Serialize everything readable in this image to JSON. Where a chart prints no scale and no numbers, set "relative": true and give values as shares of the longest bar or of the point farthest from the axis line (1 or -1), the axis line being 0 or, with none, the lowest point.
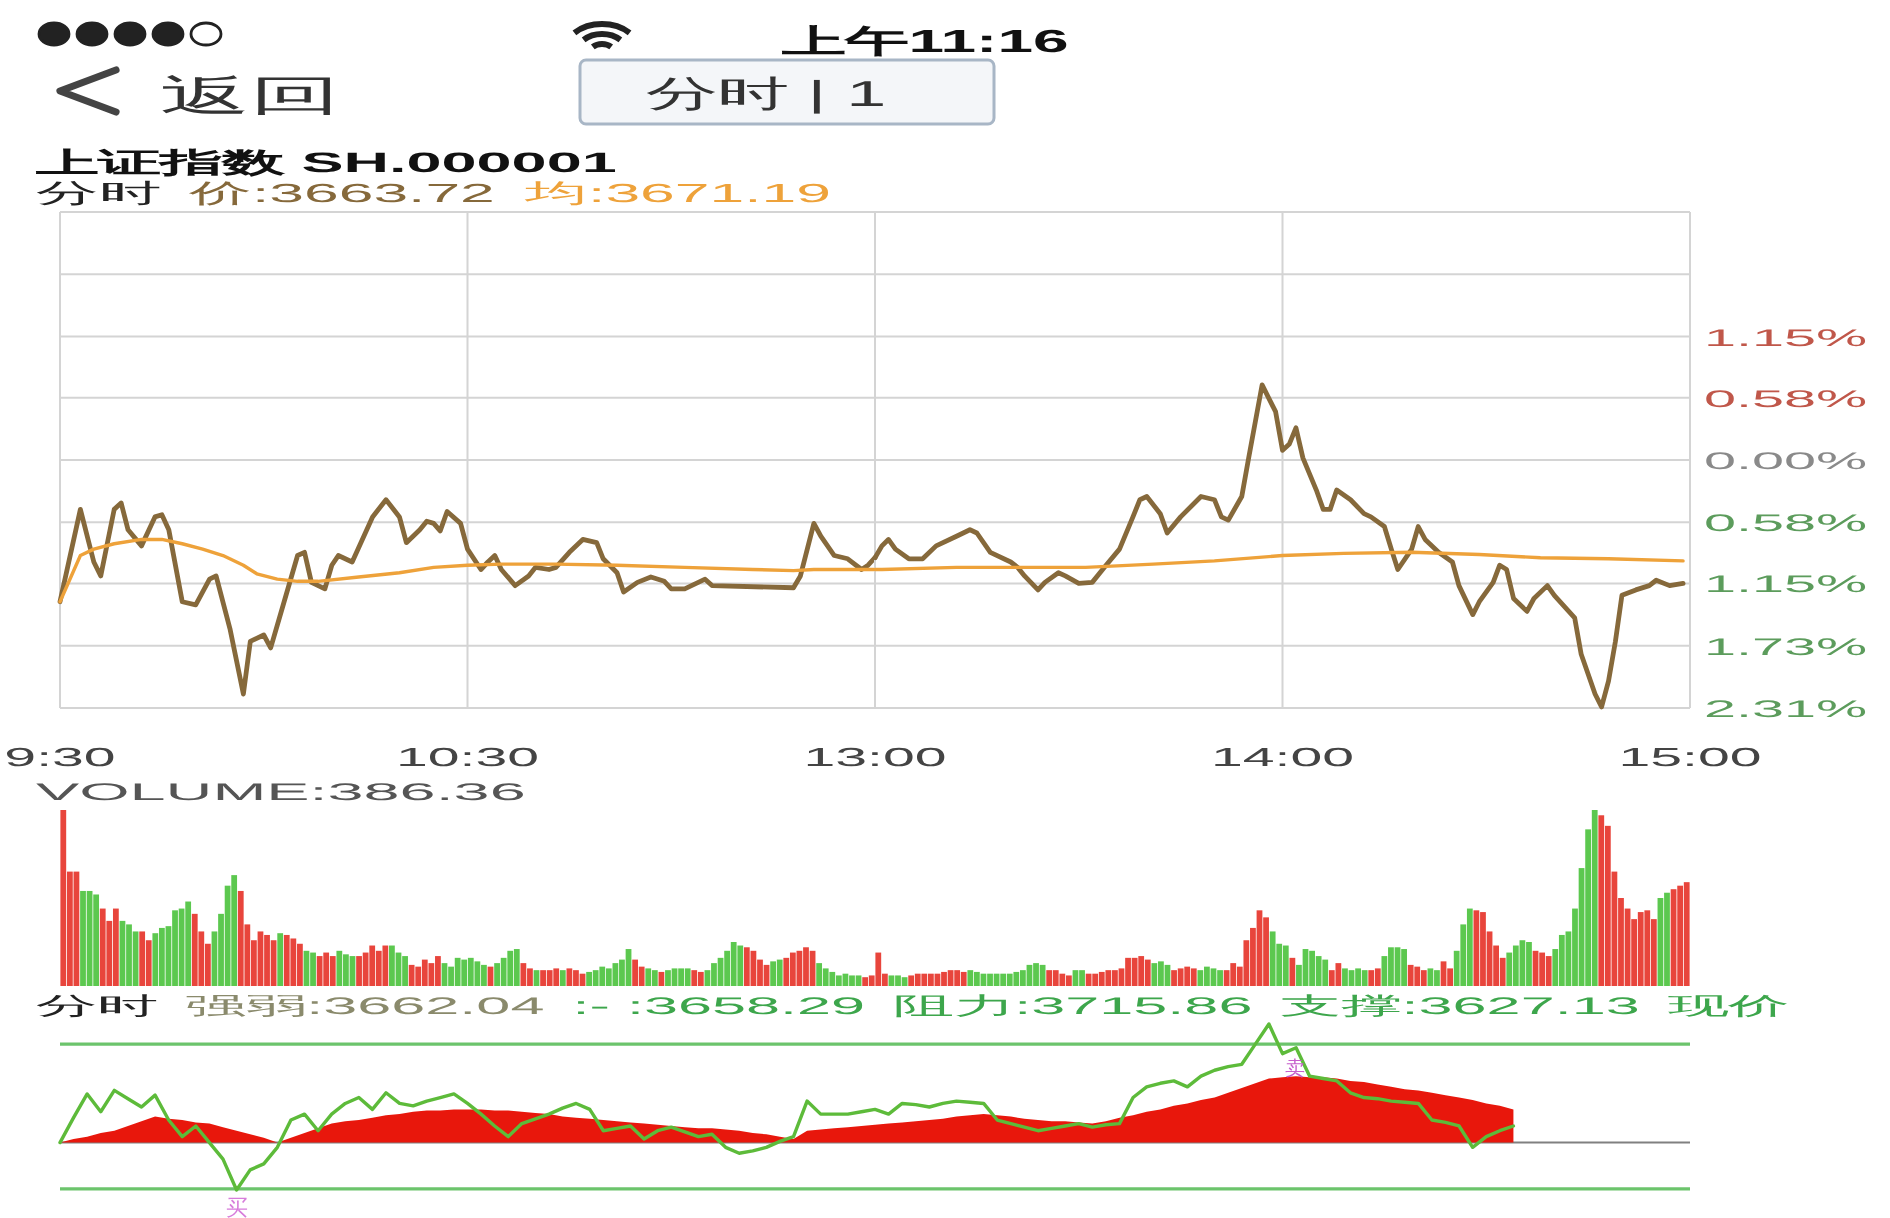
{
  "chart_data": [
    {
      "type": "line",
      "title": "上证指数 SH.000001",
      "subtitle": "分时",
      "annotations": [
        "上午11:16",
        "返回",
        "分时 | 1"
      ],
      "xlim": [
        9.5,
        11.5
      ],
      "xticks": [
        {
          "value": 9.5,
          "label": "9:30"
        },
        {
          "value": 10.5,
          "label": "10:30"
        }
      ],
      "ylim": [
        -2.31,
        2.31
      ],
      "yticks": [
        {
          "value": 2.31,
          "label": null
        },
        {
          "value": 1.73,
          "label": null
        },
        {
          "value": 1.15,
          "label": null
        },
        {
          "value": 0.58,
          "label": null
        },
        {
          "value": 0,
          "label": null
        },
        {
          "value": -0.58,
          "label": null
        },
        {
          "value": -1.15,
          "label": null
        },
        {
          "value": -1.73,
          "label": null
        },
        {
          "value": -2.31,
          "label": null
        }
      ],
      "tick_labels": "x",
      "grid": true,
      "legend": "top",
      "series": [
        {
          "name": "价:3663.72",
          "color": "#86693b",
          "x": [
            9.5,
            9.55,
            9.583,
            9.6,
            9.633,
            9.65,
            9.667,
            9.7,
            9.733,
            9.75,
            9.767,
            9.8,
            9.833,
            9.867,
            9.883,
            9.917,
            9.95,
            9.967,
            10,
            10.017,
            10.05,
            10.083,
            10.1,
            10.117,
            10.15,
            10.167,
            10.183,
            10.217,
            10.267,
            10.3,
            10.333,
            10.35,
            10.383,
            10.4,
            10.417,
            10.433,
            10.45,
            10.483,
            10.5,
            10.533,
            10.55,
            10.567,
            10.583,
            10.617,
            10.65,
            10.667,
            10.7,
            10.717,
            10.75,
            10.783,
            10.817,
            10.833,
            10.867,
            10.883,
            10.917,
            10.95,
            10.983,
            11,
            11.033,
            11.083,
            11.1,
            11.3,
            11.317,
            11.35,
            11.367,
            11.4,
            11.433,
            11.467,
            11.483,
            11.5
          ],
          "values": [
            -1.32,
            -0.46,
            -0.95,
            -1.08,
            -0.46,
            -0.4,
            -0.65,
            -0.8,
            -0.53,
            -0.51,
            -0.65,
            -1.32,
            -1.35,
            -1.11,
            -1.08,
            -1.57,
            -2.18,
            -1.69,
            -1.63,
            -1.75,
            -1.32,
            -0.89,
            -0.86,
            -1.14,
            -1.2,
            -0.98,
            -0.89,
            -0.95,
            -0.53,
            -0.37,
            -0.53,
            -0.77,
            -0.65,
            -0.57,
            -0.59,
            -0.66,
            -0.48,
            -0.59,
            -0.83,
            -1.02,
            -0.95,
            -0.89,
            -1.02,
            -1.17,
            -1.08,
            -1.0,
            -1.02,
            -1.0,
            -0.86,
            -0.74,
            -0.77,
            -0.92,
            -1.05,
            -1.23,
            -1.14,
            -1.09,
            -1.13,
            -1.2,
            -1.2,
            -1.11,
            -1.17,
            -1.19,
            -1.08,
            -0.59,
            -0.71,
            -0.89,
            -0.92,
            -1.02,
            -0.98,
            -0.91
          ]
        },
        {
          "name": "均:3671.19",
          "color": "#eea23a",
          "x": [
            9.5,
            9.55,
            9.583,
            9.633,
            9.7,
            9.75,
            9.8,
            9.85,
            9.9,
            9.95,
            9.983,
            10.033,
            10.083,
            10.133,
            10.233,
            10.333,
            10.417,
            10.5,
            10.583,
            10.717,
            10.867,
            11.033,
            11.2,
            11.3,
            11.35,
            11.5
          ],
          "values": [
            -1.32,
            -0.89,
            -0.83,
            -0.78,
            -0.74,
            -0.74,
            -0.78,
            -0.83,
            -0.89,
            -0.98,
            -1.06,
            -1.11,
            -1.13,
            -1.13,
            -1.09,
            -1.05,
            -1.0,
            -0.98,
            -0.97,
            -0.97,
            -0.98,
            -1.0,
            -1.02,
            -1.03,
            -1.02,
            -1.02
          ]
        }
      ]
    },
    {
      "type": "line",
      "xlim": [
        13,
        15
      ],
      "xticks": [
        {
          "value": 13,
          "label": "13:00"
        },
        {
          "value": 14,
          "label": "14:00"
        },
        {
          "value": 15,
          "label": "15:00"
        }
      ],
      "ylim": [
        -2.31,
        2.31
      ],
      "yticks": [
        {
          "value": 2.31,
          "label": null
        },
        {
          "value": 1.73,
          "label": null
        },
        {
          "value": 1.15,
          "label": "1.15%"
        },
        {
          "value": 0.58,
          "label": "0.58%"
        },
        {
          "value": 0,
          "label": "0.00%"
        },
        {
          "value": -0.58,
          "label": "0.58%"
        },
        {
          "value": -1.15,
          "label": "1.15%"
        },
        {
          "value": -1.73,
          "label": "1.73%"
        },
        {
          "value": -2.31,
          "label": "2.31%"
        }
      ],
      "grid": true,
      "series": [
        {
          "color": "#86693b",
          "x": [
            13,
            13.017,
            13.033,
            13.05,
            13.083,
            13.117,
            13.15,
            13.2,
            13.233,
            13.25,
            13.283,
            13.333,
            13.35,
            13.367,
            13.4,
            13.417,
            13.45,
            13.467,
            13.5,
            13.533,
            13.567,
            13.6,
            13.633,
            13.65,
            13.667,
            13.7,
            13.717,
            13.75,
            13.8,
            13.833,
            13.85,
            13.867,
            13.9,
            13.917,
            13.95,
            13.983,
            14,
            14.017,
            14.033,
            14.05,
            14.083,
            14.1,
            14.117,
            14.133,
            14.167,
            14.2,
            14.217,
            14.25,
            14.267,
            14.283,
            14.317,
            14.333,
            14.35,
            14.383,
            14.417,
            14.433,
            14.467,
            14.483,
            14.517,
            14.533,
            14.55,
            14.567,
            14.6,
            14.617,
            14.65,
            14.667,
            14.717,
            14.733,
            14.767,
            14.783,
            14.8,
            14.817,
            14.833,
            14.867,
            14.9,
            14.917,
            14.95,
            14.983
          ],
          "values": [
            -0.91,
            -0.8,
            -0.74,
            -0.83,
            -0.92,
            -0.92,
            -0.8,
            -0.71,
            -0.65,
            -0.68,
            -0.86,
            -0.95,
            -1.0,
            -1.08,
            -1.21,
            -1.14,
            -1.05,
            -1.08,
            -1.15,
            -1.14,
            -0.98,
            -0.83,
            -0.53,
            -0.37,
            -0.34,
            -0.5,
            -0.68,
            -0.53,
            -0.34,
            -0.37,
            -0.53,
            -0.56,
            -0.34,
            0.02,
            0.7,
            0.45,
            0.09,
            0.15,
            0.3,
            0.02,
            -0.28,
            -0.46,
            -0.46,
            -0.28,
            -0.37,
            -0.5,
            -0.53,
            -0.62,
            -0.83,
            -1.02,
            -0.83,
            -0.62,
            -0.74,
            -0.86,
            -0.95,
            -1.17,
            -1.44,
            -1.32,
            -1.14,
            -0.98,
            -1.02,
            -1.29,
            -1.41,
            -1.29,
            -1.17,
            -1.26,
            -1.47,
            -1.81,
            -2.18,
            -2.3,
            -2.06,
            -1.69,
            -1.26,
            -1.21,
            -1.17,
            -1.12,
            -1.17,
            -1.15
          ]
        },
        {
          "color": "#eea23a",
          "x": [
            13,
            13.017,
            13.2,
            13.35,
            13.517,
            13.683,
            13.833,
            14,
            14.15,
            14.317,
            14.483,
            14.633,
            14.8,
            14.983
          ],
          "values": [
            -1.02,
            -1.02,
            -1.0,
            -1.0,
            -1.0,
            -0.97,
            -0.94,
            -0.89,
            -0.87,
            -0.86,
            -0.88,
            -0.91,
            -0.92,
            -0.94
          ]
        }
      ]
    },
    {
      "type": "bar",
      "title": "VOLUME:386.36",
      "relative": true,
      "categories": [
        null,
        null,
        null,
        null,
        null,
        null,
        null,
        null,
        null,
        null,
        null,
        null,
        null,
        null,
        null,
        null,
        null,
        null,
        null,
        null,
        null,
        null,
        null,
        null,
        null,
        null,
        null,
        null,
        null,
        null,
        null,
        null,
        null,
        null,
        null,
        null,
        null,
        null,
        null,
        null,
        null,
        null,
        null,
        null,
        null,
        null,
        null,
        null,
        null,
        null,
        null,
        null,
        null,
        null,
        null,
        null,
        null,
        null,
        null,
        null,
        null,
        null,
        null,
        null,
        null,
        null,
        null,
        null,
        null,
        null,
        null,
        null,
        null,
        null,
        null,
        null,
        null,
        null,
        null,
        null,
        null,
        null,
        null,
        null,
        null,
        null,
        null,
        null,
        null,
        null,
        null,
        null,
        null,
        null,
        null,
        null,
        null,
        null,
        null,
        null,
        null,
        null,
        null,
        null,
        null,
        null,
        null,
        null,
        null,
        null,
        null,
        null,
        null,
        null,
        null,
        null,
        null,
        null,
        null,
        null,
        null,
        null,
        null,
        null,
        null,
        null,
        null,
        null,
        null,
        null,
        null,
        null,
        null,
        null,
        null,
        null,
        null,
        null,
        null,
        null,
        null,
        null,
        null,
        null,
        null,
        null,
        null,
        null,
        null,
        null,
        null,
        null,
        null,
        null,
        null,
        null,
        null,
        null,
        null,
        null,
        null,
        null,
        null,
        null,
        null,
        null,
        null,
        null,
        null,
        null,
        null,
        null,
        null,
        null,
        null,
        null,
        null,
        null,
        null,
        null,
        null,
        null,
        null,
        null,
        null,
        null,
        null,
        null,
        null,
        null,
        null,
        null,
        null,
        null,
        null,
        null,
        null,
        null,
        null,
        null,
        null,
        null,
        null,
        null,
        null,
        null,
        null,
        null,
        null,
        null,
        null,
        null,
        null,
        null,
        null,
        null,
        null,
        null,
        null,
        null,
        null,
        null,
        null,
        null,
        null,
        null,
        null,
        null,
        null,
        null,
        null,
        null,
        null,
        null,
        null,
        null,
        null,
        null,
        null,
        null,
        null,
        null,
        null,
        null,
        null,
        null,
        null,
        null
      ],
      "values": [
        1.0,
        0.65,
        0.65,
        0.54,
        0.54,
        0.52,
        0.44,
        0.37,
        0.44,
        0.37,
        0.35,
        0.31,
        0.31,
        0.26,
        0.3,
        0.33,
        0.34,
        0.43,
        0.44,
        0.48,
        0.41,
        0.31,
        0.24,
        0.31,
        0.41,
        0.57,
        0.63,
        0.54,
        0.35,
        0.26,
        0.31,
        0.29,
        0.26,
        0.3,
        0.29,
        0.27,
        0.24,
        0.2,
        0.19,
        0.17,
        0.19,
        0.17,
        0.2,
        0.18,
        0.17,
        0.17,
        0.19,
        0.23,
        0.2,
        0.23,
        0.23,
        0.19,
        0.17,
        0.12,
        0.11,
        0.15,
        0.13,
        0.17,
        0.13,
        0.11,
        0.16,
        0.15,
        0.16,
        0.14,
        0.12,
        0.11,
        0.13,
        0.16,
        0.2,
        0.21,
        0.13,
        0.1,
        0.09,
        0.09,
        0.09,
        0.1,
        0.09,
        0.1,
        0.09,
        0.07,
        0.08,
        0.09,
        0.11,
        0.1,
        0.13,
        0.15,
        0.21,
        0.15,
        0.11,
        0.1,
        0.09,
        0.08,
        0.09,
        0.1,
        0.1,
        0.1,
        0.09,
        0.08,
        0.09,
        0.13,
        0.16,
        0.2,
        0.25,
        0.23,
        0.22,
        0.2,
        0.15,
        0.12,
        0.14,
        0.15,
        0.16,
        0.19,
        0.2,
        0.22,
        0.2,
        0.13,
        0.1,
        0.08,
        0.06,
        0.07,
        0.06,
        0.06,
        0.05,
        0.06,
        0.19,
        0.07,
        0.06,
        0.06,
        0.05,
        0.06,
        0.07,
        0.07,
        0.07,
        0.07,
        0.08,
        0.09,
        0.09,
        0.08,
        0.09,
        0.08,
        0.07,
        0.07,
        0.07,
        0.07,
        0.07,
        0.08,
        0.09,
        0.12,
        0.13,
        0.12,
        0.09,
        0.09,
        0.07,
        0.06,
        0.09,
        0.09,
        0.07,
        0.07,
        0.08,
        0.09,
        0.09,
        0.1,
        0.16,
        0.16,
        0.17,
        0.15,
        0.13,
        0.14,
        0.12,
        0.09,
        0.1,
        0.11,
        0.1,
        0.09,
        0.11,
        0.1,
        0.09,
        0.09,
        0.13,
        0.11,
        0.26,
        0.33,
        0.43,
        0.39,
        0.31,
        0.24,
        0.23,
        0.16,
        0.12,
        0.21,
        0.2,
        0.17,
        0.15,
        0.09,
        0.13,
        0.1,
        0.09,
        0.1,
        0.09,
        0.09,
        0.1,
        0.17,
        0.22,
        0.22,
        0.21,
        0.12,
        0.11,
        0.09,
        0.1,
        0.09,
        0.14,
        0.1,
        0.2,
        0.35,
        0.44,
        0.43,
        0.42,
        0.31,
        0.23,
        0.16,
        0.19,
        0.23,
        0.26,
        0.25,
        0.2,
        0.19,
        0.17,
        0.21,
        0.29,
        0.31,
        0.44,
        0.67,
        0.89,
        1.0,
        0.97,
        0.91,
        0.65,
        0.5,
        0.44,
        0.38,
        0.42,
        0.43,
        0.38,
        0.5,
        0.53,
        0.55,
        0.57,
        0.59
      ],
      "colors": [
        "#e8453c",
        "#e8453c",
        "#e8453c",
        "#5cc84f",
        "#5cc84f",
        "#5cc84f",
        "#e8453c",
        "#e8453c",
        "#e8453c",
        "#5cc84f",
        "#5cc84f",
        "#5cc84f",
        "#e8453c",
        "#e8453c",
        "#5cc84f",
        "#5cc84f",
        "#5cc84f",
        "#5cc84f",
        "#5cc84f",
        "#5cc84f",
        "#e8453c",
        "#e8453c",
        "#e8453c",
        "#5cc84f",
        "#5cc84f",
        "#5cc84f",
        "#5cc84f",
        "#e8453c",
        "#e8453c",
        "#e8453c",
        "#e8453c",
        "#e8453c",
        "#e8453c",
        "#5cc84f",
        "#e8453c",
        "#e8453c",
        "#e8453c",
        "#5cc84f",
        "#5cc84f",
        "#e8453c",
        "#e8453c",
        "#e8453c",
        "#5cc84f",
        "#5cc84f",
        "#5cc84f",
        "#e8453c",
        "#e8453c",
        "#e8453c",
        "#e8453c",
        "#e8453c",
        "#5cc84f",
        "#5cc84f",
        "#5cc84f",
        "#e8453c",
        "#e8453c",
        "#e8453c",
        "#e8453c",
        "#e8453c",
        "#5cc84f",
        "#5cc84f",
        "#5cc84f",
        "#5cc84f",
        "#5cc84f",
        "#5cc84f",
        "#5cc84f",
        "#e8453c",
        "#5cc84f",
        "#5cc84f",
        "#5cc84f",
        "#5cc84f",
        "#e8453c",
        "#e8453c",
        "#5cc84f",
        "#e8453c",
        "#e8453c",
        "#e8453c",
        "#5cc84f",
        "#e8453c",
        "#e8453c",
        "#e8453c",
        "#5cc84f",
        "#5cc84f",
        "#5cc84f",
        "#5cc84f",
        "#5cc84f",
        "#5cc84f",
        "#5cc84f",
        "#e8453c",
        "#e8453c",
        "#5cc84f",
        "#5cc84f",
        "#e8453c",
        "#5cc84f",
        "#5cc84f",
        "#5cc84f",
        "#5cc84f",
        "#e8453c",
        "#e8453c",
        "#5cc84f",
        "#5cc84f",
        "#5cc84f",
        "#5cc84f",
        "#5cc84f",
        "#5cc84f",
        "#e8453c",
        "#e8453c",
        "#e8453c",
        "#e8453c",
        "#5cc84f",
        "#5cc84f",
        "#e8453c",
        "#e8453c",
        "#e8453c",
        "#e8453c",
        "#e8453c",
        "#5cc84f",
        "#5cc84f",
        "#5cc84f",
        "#5cc84f",
        "#5cc84f",
        "#5cc84f",
        "#5cc84f",
        "#e8453c",
        "#e8453c",
        "#e8453c",
        "#e8453c",
        "#5cc84f",
        "#5cc84f",
        "#5cc84f",
        "#e8453c",
        "#e8453c",
        "#e8453c",
        "#e8453c",
        "#e8453c",
        "#e8453c",
        "#e8453c",
        "#e8453c",
        "#e8453c",
        "#5cc84f",
        "#5cc84f",
        "#5cc84f",
        "#5cc84f",
        "#5cc84f",
        "#5cc84f",
        "#5cc84f",
        "#5cc84f",
        "#5cc84f",
        "#5cc84f",
        "#5cc84f",
        "#5cc84f",
        "#e8453c",
        "#e8453c",
        "#e8453c",
        "#e8453c",
        "#5cc84f",
        "#5cc84f",
        "#e8453c",
        "#e8453c",
        "#e8453c",
        "#e8453c",
        "#e8453c",
        "#e8453c",
        "#e8453c",
        "#e8453c",
        "#e8453c",
        "#e8453c",
        "#5cc84f",
        "#5cc84f",
        "#5cc84f",
        "#e8453c",
        "#e8453c",
        "#e8453c",
        "#e8453c",
        "#5cc84f",
        "#5cc84f",
        "#5cc84f",
        "#5cc84f",
        "#e8453c",
        "#e8453c",
        "#e8453c",
        "#e8453c",
        "#e8453c",
        "#e8453c",
        "#e8453c",
        "#5cc84f",
        "#5cc84f",
        "#5cc84f",
        "#e8453c",
        "#5cc84f",
        "#5cc84f",
        "#5cc84f",
        "#5cc84f",
        "#5cc84f",
        "#e8453c",
        "#e8453c",
        "#5cc84f",
        "#5cc84f",
        "#5cc84f",
        "#5cc84f",
        "#e8453c",
        "#e8453c",
        "#5cc84f",
        "#5cc84f",
        "#5cc84f",
        "#5cc84f",
        "#e8453c",
        "#e8453c",
        "#e8453c",
        "#5cc84f",
        "#5cc84f",
        "#e8453c",
        "#e8453c",
        "#5cc84f",
        "#5cc84f",
        "#5cc84f",
        "#e8453c",
        "#e8453c",
        "#e8453c",
        "#e8453c",
        "#e8453c",
        "#5cc84f",
        "#5cc84f",
        "#5cc84f",
        "#5cc84f",
        "#e8453c",
        "#e8453c",
        "#e8453c",
        "#5cc84f",
        "#5cc84f",
        "#5cc84f",
        "#5cc84f",
        "#5cc84f",
        "#5cc84f",
        "#5cc84f",
        "#e8453c",
        "#e8453c",
        "#e8453c",
        "#e8453c",
        "#e8453c",
        "#e8453c",
        "#e8453c",
        "#e8453c",
        "#e8453c",
        "#5cc84f",
        "#5cc84f",
        "#e8453c",
        "#e8453c",
        "#e8453c"
      ]
    },
    {
      "type": "line",
      "title": "分时",
      "annotations": [
        "强弱:3662.04",
        ":- :3658.29",
        "阻力:3715.86",
        "支撑:3627.13",
        "现价",
        "卖",
        "买"
      ],
      "relative": true,
      "categories": [
        null,
        null,
        null,
        null,
        null,
        null,
        null,
        null,
        null,
        null,
        null,
        null,
        null,
        null,
        null,
        null,
        null,
        null,
        null,
        null,
        null,
        null,
        null,
        null,
        null,
        null,
        null,
        null,
        null,
        null,
        null,
        null,
        null,
        null,
        null,
        null,
        null,
        null,
        null,
        null,
        null,
        null,
        null,
        null,
        null,
        null,
        null,
        null,
        null,
        null,
        null,
        null,
        null,
        null,
        null,
        null,
        null,
        null,
        null,
        null,
        null,
        null,
        null,
        null,
        null,
        null,
        null,
        null,
        null,
        null,
        null,
        null,
        null,
        null,
        null,
        null,
        null,
        null,
        null,
        null,
        null,
        null,
        null,
        null,
        null,
        null,
        null,
        null,
        null,
        null,
        null,
        null,
        null,
        null,
        null,
        null,
        null,
        null,
        null,
        null,
        null,
        null,
        null,
        null,
        null,
        null,
        null,
        null,
        null,
        null,
        null,
        null,
        null,
        null,
        null,
        null,
        null,
        null,
        null,
        null,
        null
      ],
      "ref_lines": [
        {
          "axis": "y",
          "value": 0.83,
          "color": "#6cc46c"
        },
        {
          "axis": "y",
          "value": -0.39,
          "color": "#6cc46c"
        }
      ],
      "series": [
        {
          "type": "area",
          "color": "#e8170c",
          "values": [
            0,
            0.03,
            0.05,
            0.08,
            0.1,
            0.14,
            0.18,
            0.22,
            0.2,
            0.19,
            0.17,
            0.16,
            0.13,
            0.1,
            0.07,
            0.04,
            0,
            0.04,
            0.08,
            0.12,
            0.16,
            0.18,
            0.19,
            0.21,
            0.23,
            0.24,
            0.26,
            0.27,
            0.27,
            0.28,
            0.28,
            0.28,
            0.27,
            0.27,
            0.26,
            0.25,
            0.24,
            0.22,
            0.21,
            0.2,
            0.19,
            0.18,
            0.17,
            0.16,
            0.15,
            0.14,
            0.13,
            0.12,
            0.12,
            0.11,
            0.1,
            0.08,
            0.07,
            0.05,
            0.03,
            0.1,
            0.11,
            0.12,
            0.13,
            0.14,
            0.15,
            0.16,
            0.17,
            0.18,
            0.19,
            0.2,
            0.22,
            0.23,
            0.24,
            0.23,
            0.22,
            0.2,
            0.19,
            0.18,
            0.18,
            0.17,
            0.16,
            0.18,
            0.21,
            0.23,
            0.26,
            0.28,
            0.31,
            0.33,
            0.36,
            0.38,
            0.42,
            0.46,
            0.5,
            0.54,
            0.55,
            0.56,
            0.55,
            0.55,
            0.54,
            0.52,
            0.51,
            0.49,
            0.47,
            0.45,
            0.44,
            0.42,
            0.4,
            0.38,
            0.36,
            0.33,
            0.31,
            0.28,
            null,
            null,
            null,
            null,
            null,
            null,
            null,
            null,
            null,
            null,
            null,
            null,
            null
          ]
        },
        {
          "color": "#5dbb3a",
          "values": [
            0,
            0.21,
            0.41,
            0.26,
            0.44,
            0.37,
            0.3,
            0.4,
            0.19,
            0.05,
            0.14,
            0,
            -0.14,
            -0.4,
            -0.23,
            -0.18,
            -0.04,
            0.19,
            0.24,
            0.1,
            0.24,
            0.33,
            0.38,
            0.28,
            0.42,
            0.33,
            0.31,
            0.35,
            0.38,
            0.41,
            0.33,
            0.24,
            0.14,
            0.05,
            0.16,
            0.2,
            0.24,
            0.29,
            0.33,
            0.28,
            0.1,
            0.12,
            0.14,
            0.03,
            0.1,
            0.13,
            0.09,
            0.05,
            0.07,
            -0.04,
            -0.09,
            -0.07,
            -0.04,
            0.01,
            0.05,
            0.35,
            0.24,
            0.24,
            0.24,
            0.26,
            0.28,
            0.24,
            0.33,
            0.32,
            0.3,
            0.33,
            0.35,
            0.34,
            0.33,
            0.19,
            0.16,
            0.13,
            0.1,
            0.12,
            0.14,
            0.16,
            0.13,
            0.15,
            0.16,
            0.38,
            0.47,
            0.5,
            0.52,
            0.47,
            0.56,
            0.61,
            0.64,
            0.66,
            0.83,
            1.0,
            0.75,
            0.8,
            0.56,
            0.54,
            0.52,
            0.42,
            0.38,
            0.37,
            0.35,
            0.34,
            0.33,
            0.19,
            0.17,
            0.14,
            -0.04,
            0.05,
            0.1,
            0.14,
            null,
            null,
            null,
            null,
            null,
            null,
            null,
            null,
            null,
            null,
            null,
            null,
            null
          ]
        }
      ]
    }
  ]
}
